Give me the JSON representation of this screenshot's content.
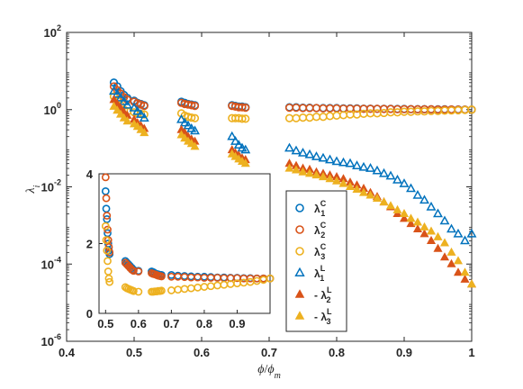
{
  "chart_data": {
    "type": "scatter",
    "main": {
      "xlabel": "ϕ/ϕ_m",
      "ylabel": "λ_i",
      "xlim": [
        0.4,
        1.0
      ],
      "ylim_log10": [
        -6,
        2
      ],
      "yscale": "log",
      "grid": false,
      "x_ticks": [
        "0.4",
        "0.5",
        "0.6",
        "0.7",
        "0.8",
        "0.9",
        "1"
      ],
      "y_ticks": [
        {
          "base": "10",
          "exp": "2"
        },
        {
          "base": "10",
          "exp": "0"
        },
        {
          "base": "10",
          "exp": "-2"
        },
        {
          "base": "10",
          "exp": "-4"
        },
        {
          "base": "10",
          "exp": "-6"
        }
      ],
      "legend_position": "right-middle",
      "series": [
        {
          "name": "λ1C",
          "marker": "circle-open",
          "color": "#0072BD",
          "x": [
            0.47,
            0.475,
            0.48,
            0.485,
            0.49,
            0.5,
            0.505,
            0.51,
            0.515,
            0.57,
            0.575,
            0.58,
            0.585,
            0.59,
            0.645,
            0.65,
            0.655,
            0.66,
            0.665,
            0.73,
            0.74,
            0.75,
            0.76,
            0.77,
            0.78,
            0.79,
            0.8,
            0.81,
            0.82,
            0.83,
            0.84,
            0.85,
            0.86,
            0.87,
            0.88,
            0.89,
            0.9,
            0.91,
            0.92,
            0.93,
            0.94,
            0.95,
            0.96,
            0.97,
            0.98,
            0.99,
            1.0
          ],
          "y": [
            5.0,
            4.0,
            3.0,
            2.4,
            2.0,
            1.7,
            1.5,
            1.4,
            1.3,
            1.6,
            1.5,
            1.4,
            1.35,
            1.3,
            1.3,
            1.25,
            1.2,
            1.2,
            1.15,
            1.15,
            1.15,
            1.12,
            1.12,
            1.1,
            1.1,
            1.1,
            1.1,
            1.08,
            1.08,
            1.08,
            1.06,
            1.06,
            1.05,
            1.05,
            1.05,
            1.04,
            1.04,
            1.03,
            1.03,
            1.03,
            1.02,
            1.02,
            1.02,
            1.01,
            1.01,
            1.0,
            1.0
          ]
        },
        {
          "name": "λ2C",
          "marker": "circle-open",
          "color": "#D95319",
          "x": [
            0.47,
            0.475,
            0.48,
            0.485,
            0.49,
            0.5,
            0.505,
            0.51,
            0.515,
            0.57,
            0.575,
            0.58,
            0.585,
            0.59,
            0.645,
            0.65,
            0.655,
            0.66,
            0.665,
            0.73,
            0.74,
            0.75,
            0.76,
            0.77,
            0.78,
            0.79,
            0.8,
            0.81,
            0.82,
            0.83,
            0.84,
            0.85,
            0.86,
            0.87,
            0.88,
            0.89,
            0.9,
            0.91,
            0.92,
            0.93,
            0.94,
            0.95,
            0.96,
            0.97,
            0.98,
            0.99,
            1.0
          ],
          "y": [
            4.0,
            3.2,
            2.6,
            2.1,
            1.8,
            1.6,
            1.45,
            1.35,
            1.25,
            1.5,
            1.4,
            1.35,
            1.3,
            1.25,
            1.25,
            1.2,
            1.15,
            1.15,
            1.12,
            1.12,
            1.12,
            1.1,
            1.1,
            1.1,
            1.08,
            1.08,
            1.08,
            1.06,
            1.06,
            1.06,
            1.05,
            1.05,
            1.05,
            1.04,
            1.04,
            1.03,
            1.03,
            1.03,
            1.02,
            1.02,
            1.02,
            1.01,
            1.01,
            1.01,
            1.0,
            1.0,
            1.0
          ]
        },
        {
          "name": "λ3C",
          "marker": "circle-open",
          "color": "#EDB120",
          "x": [
            0.47,
            0.475,
            0.48,
            0.485,
            0.49,
            0.5,
            0.505,
            0.51,
            0.515,
            0.57,
            0.575,
            0.58,
            0.585,
            0.59,
            0.645,
            0.65,
            0.655,
            0.66,
            0.665,
            0.73,
            0.74,
            0.75,
            0.76,
            0.77,
            0.78,
            0.79,
            0.8,
            0.81,
            0.82,
            0.83,
            0.84,
            0.85,
            0.86,
            0.87,
            0.88,
            0.89,
            0.9,
            0.91,
            0.92,
            0.93,
            0.94,
            0.95,
            0.96,
            0.97,
            0.98,
            0.99,
            1.0
          ],
          "y": [
            2.2,
            1.7,
            1.3,
            1.0,
            0.9,
            0.85,
            0.8,
            0.78,
            0.75,
            0.8,
            0.7,
            0.65,
            0.62,
            0.6,
            0.6,
            0.6,
            0.6,
            0.58,
            0.58,
            0.6,
            0.6,
            0.62,
            0.62,
            0.65,
            0.65,
            0.68,
            0.7,
            0.72,
            0.75,
            0.75,
            0.78,
            0.8,
            0.8,
            0.82,
            0.85,
            0.85,
            0.88,
            0.88,
            0.9,
            0.9,
            0.92,
            0.92,
            0.94,
            0.95,
            0.96,
            0.98,
            1.0
          ]
        },
        {
          "name": "λ1L",
          "marker": "triangle-open",
          "color": "#0072BD",
          "x": [
            0.47,
            0.475,
            0.48,
            0.485,
            0.49,
            0.5,
            0.505,
            0.51,
            0.515,
            0.57,
            0.575,
            0.58,
            0.585,
            0.59,
            0.645,
            0.65,
            0.655,
            0.66,
            0.665,
            0.73,
            0.74,
            0.75,
            0.76,
            0.77,
            0.78,
            0.79,
            0.8,
            0.81,
            0.82,
            0.83,
            0.84,
            0.85,
            0.86,
            0.87,
            0.88,
            0.89,
            0.9,
            0.91,
            0.92,
            0.93,
            0.94,
            0.95,
            0.96,
            0.97,
            0.98,
            0.99,
            1.0
          ],
          "y": [
            3.0,
            2.5,
            2.0,
            1.6,
            1.3,
            1.1,
            0.9,
            0.75,
            0.6,
            0.55,
            0.45,
            0.38,
            0.32,
            0.28,
            0.2,
            0.15,
            0.12,
            0.1,
            0.09,
            0.1,
            0.085,
            0.075,
            0.068,
            0.06,
            0.055,
            0.05,
            0.045,
            0.042,
            0.04,
            0.035,
            0.032,
            0.03,
            0.026,
            0.022,
            0.019,
            0.015,
            0.012,
            0.009,
            0.006,
            0.0045,
            0.003,
            0.002,
            0.0013,
            0.0008,
            0.0006,
            0.0004,
            0.0006
          ]
        },
        {
          "name": "- λ2L",
          "marker": "triangle-filled",
          "color": "#D95319",
          "x": [
            0.47,
            0.475,
            0.48,
            0.485,
            0.49,
            0.5,
            0.505,
            0.51,
            0.515,
            0.57,
            0.575,
            0.58,
            0.585,
            0.59,
            0.645,
            0.65,
            0.655,
            0.66,
            0.665,
            0.73,
            0.74,
            0.75,
            0.76,
            0.77,
            0.78,
            0.79,
            0.8,
            0.81,
            0.82,
            0.83,
            0.84,
            0.85,
            0.86,
            0.87,
            0.88,
            0.89,
            0.9,
            0.91,
            0.92,
            0.93,
            0.94,
            0.95,
            0.96,
            0.97,
            0.98,
            0.99,
            1.0
          ],
          "y": [
            1.8,
            1.4,
            1.1,
            0.85,
            0.7,
            0.55,
            0.45,
            0.38,
            0.32,
            0.3,
            0.25,
            0.2,
            0.17,
            0.15,
            0.09,
            0.075,
            0.065,
            0.055,
            0.05,
            0.04,
            0.035,
            0.03,
            0.028,
            0.024,
            0.022,
            0.02,
            0.018,
            0.016,
            0.013,
            0.011,
            0.009,
            0.007,
            0.0055,
            0.004,
            0.003,
            0.002,
            0.0015,
            0.0011,
            0.0008,
            0.0006,
            0.0004,
            0.00025,
            0.00015,
            0.0001,
            6e-05,
            4e-05,
            3e-05
          ]
        },
        {
          "name": "- λ3L",
          "marker": "triangle-filled",
          "color": "#EDB120",
          "x": [
            0.47,
            0.475,
            0.48,
            0.485,
            0.49,
            0.5,
            0.505,
            0.51,
            0.515,
            0.57,
            0.575,
            0.58,
            0.585,
            0.59,
            0.645,
            0.65,
            0.655,
            0.66,
            0.665,
            0.73,
            0.74,
            0.75,
            0.76,
            0.77,
            0.78,
            0.79,
            0.8,
            0.81,
            0.82,
            0.83,
            0.84,
            0.85,
            0.86,
            0.87,
            0.88,
            0.89,
            0.9,
            0.91,
            0.92,
            0.93,
            0.94,
            0.95,
            0.96,
            0.97,
            0.98,
            0.99,
            1.0
          ],
          "y": [
            1.2,
            0.95,
            0.75,
            0.6,
            0.5,
            0.42,
            0.36,
            0.3,
            0.25,
            0.22,
            0.18,
            0.15,
            0.13,
            0.11,
            0.07,
            0.06,
            0.052,
            0.045,
            0.04,
            0.03,
            0.027,
            0.024,
            0.022,
            0.02,
            0.018,
            0.016,
            0.014,
            0.012,
            0.01,
            0.0085,
            0.007,
            0.006,
            0.005,
            0.004,
            0.0032,
            0.0025,
            0.002,
            0.0015,
            0.0012,
            0.0009,
            0.0007,
            0.0005,
            0.00035,
            0.0002,
            0.00012,
            6e-05,
            3e-05
          ]
        }
      ]
    },
    "inset": {
      "xlim": [
        0.48,
        1.0
      ],
      "ylim": [
        0,
        4
      ],
      "yscale": "linear",
      "x_ticks": [
        "0.5",
        "0.6",
        "0.7",
        "0.8",
        "0.9"
      ],
      "y_ticks": [
        "0",
        "2",
        "4"
      ],
      "series": [
        {
          "name": "λ1C",
          "marker": "circle-open",
          "color": "#0072BD",
          "x": [
            0.5,
            0.502,
            0.504,
            0.506,
            0.508,
            0.51,
            0.512,
            0.56,
            0.565,
            0.57,
            0.575,
            0.58,
            0.585,
            0.6,
            0.64,
            0.645,
            0.65,
            0.655,
            0.66,
            0.665,
            0.67,
            0.7,
            0.72,
            0.74,
            0.76,
            0.78,
            0.8,
            0.82,
            0.84,
            0.86,
            0.88,
            0.9,
            0.92,
            0.94,
            0.96,
            0.98,
            1.0
          ],
          "y": [
            3.5,
            3.0,
            2.7,
            2.3,
            2.0,
            1.8,
            1.7,
            1.5,
            1.45,
            1.4,
            1.35,
            1.3,
            1.25,
            1.22,
            1.2,
            1.18,
            1.15,
            1.13,
            1.12,
            1.1,
            1.1,
            1.1,
            1.08,
            1.07,
            1.06,
            1.05,
            1.05,
            1.04,
            1.03,
            1.03,
            1.02,
            1.02,
            1.01,
            1.01,
            1.0,
            1.0,
            1.0
          ]
        },
        {
          "name": "λ2C",
          "marker": "circle-open",
          "color": "#D95319",
          "x": [
            0.5,
            0.502,
            0.504,
            0.506,
            0.508,
            0.51,
            0.512,
            0.56,
            0.565,
            0.57,
            0.575,
            0.58,
            0.585,
            0.6,
            0.64,
            0.645,
            0.65,
            0.655,
            0.66,
            0.665,
            0.67,
            0.7,
            0.72,
            0.74,
            0.76,
            0.78,
            0.8,
            0.82,
            0.84,
            0.86,
            0.88,
            0.9,
            0.92,
            0.94,
            0.96,
            0.98,
            1.0
          ],
          "y": [
            3.9,
            3.3,
            2.8,
            2.4,
            2.1,
            1.9,
            1.75,
            1.45,
            1.4,
            1.35,
            1.3,
            1.25,
            1.22,
            1.2,
            1.15,
            1.13,
            1.12,
            1.1,
            1.08,
            1.07,
            1.06,
            1.05,
            1.05,
            1.04,
            1.03,
            1.03,
            1.02,
            1.02,
            1.02,
            1.01,
            1.01,
            1.01,
            1.0,
            1.0,
            1.0,
            1.0,
            1.0
          ]
        },
        {
          "name": "λ3C",
          "marker": "circle-open",
          "color": "#EDB120",
          "x": [
            0.5,
            0.502,
            0.504,
            0.506,
            0.508,
            0.51,
            0.512,
            0.56,
            0.565,
            0.57,
            0.575,
            0.58,
            0.585,
            0.6,
            0.64,
            0.645,
            0.65,
            0.655,
            0.66,
            0.665,
            0.67,
            0.7,
            0.72,
            0.74,
            0.76,
            0.78,
            0.8,
            0.82,
            0.84,
            0.86,
            0.88,
            0.9,
            0.92,
            0.94,
            0.96,
            0.98,
            1.0
          ],
          "y": [
            2.5,
            2.1,
            1.8,
            1.5,
            1.2,
            1.0,
            0.9,
            0.75,
            0.72,
            0.7,
            0.68,
            0.66,
            0.64,
            0.62,
            0.62,
            0.62,
            0.63,
            0.63,
            0.64,
            0.64,
            0.65,
            0.66,
            0.68,
            0.7,
            0.72,
            0.74,
            0.76,
            0.78,
            0.8,
            0.82,
            0.84,
            0.86,
            0.88,
            0.9,
            0.93,
            0.96,
            1.0
          ]
        }
      ]
    }
  },
  "legend": [
    {
      "prefix": "",
      "base": "λ",
      "sub": "1",
      "sup": "C",
      "color": "#0072BD",
      "marker": "circle-open"
    },
    {
      "prefix": "",
      "base": "λ",
      "sub": "2",
      "sup": "C",
      "color": "#D95319",
      "marker": "circle-open"
    },
    {
      "prefix": "",
      "base": "λ",
      "sub": "3",
      "sup": "C",
      "color": "#EDB120",
      "marker": "circle-open"
    },
    {
      "prefix": "",
      "base": "λ",
      "sub": "1",
      "sup": "L",
      "color": "#0072BD",
      "marker": "triangle-open"
    },
    {
      "prefix": "- ",
      "base": "λ",
      "sub": "2",
      "sup": "L",
      "color": "#D95319",
      "marker": "triangle-filled"
    },
    {
      "prefix": "- ",
      "base": "λ",
      "sub": "3",
      "sup": "L",
      "color": "#EDB120",
      "marker": "triangle-filled"
    }
  ],
  "labels": {
    "ylabel_base": "λ",
    "ylabel_sub": "i",
    "xlabel_num": "ϕ",
    "xlabel_slash": "/",
    "xlabel_den": "ϕ",
    "xlabel_den_sub": "m"
  }
}
